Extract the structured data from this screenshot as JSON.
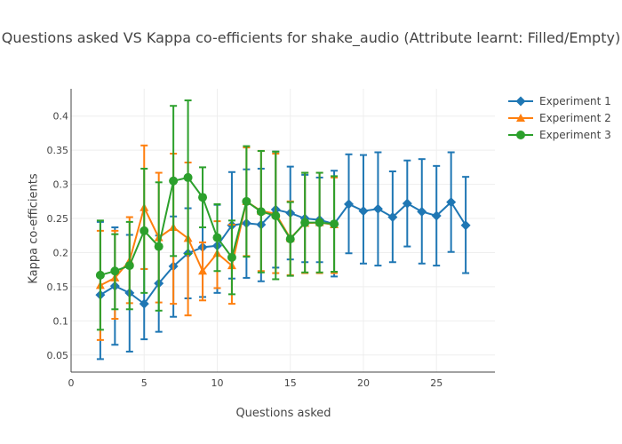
{
  "chart_data": {
    "type": "line",
    "title": "Questions asked VS Kappa co-efficients for shake_audio (Attribute learnt: Filled/Empty)",
    "xlabel": "Questions asked",
    "ylabel": "Kappa co-efficients",
    "xlim": [
      0,
      29
    ],
    "ylim": [
      0.025,
      0.44
    ],
    "x_ticks": [
      0,
      5,
      10,
      15,
      20,
      25
    ],
    "y_ticks": [
      0.05,
      0.1,
      0.15,
      0.2,
      0.25,
      0.3,
      0.35,
      0.4
    ],
    "grid": true,
    "legend_position": "top-right",
    "series": [
      {
        "name": "Experiment 1",
        "color": "#1f77b4",
        "marker": "diamond",
        "x": [
          2,
          3,
          4,
          5,
          6,
          7,
          8,
          9,
          10,
          11,
          12,
          13,
          14,
          15,
          16,
          17,
          18,
          19,
          20,
          21,
          22,
          23,
          24,
          25,
          26,
          27
        ],
        "y": [
          0.138,
          0.151,
          0.141,
          0.125,
          0.155,
          0.18,
          0.199,
          0.208,
          0.21,
          0.24,
          0.243,
          0.241,
          0.263,
          0.258,
          0.25,
          0.248,
          0.242,
          0.271,
          0.261,
          0.264,
          0.252,
          0.272,
          0.26,
          0.254,
          0.274,
          0.24
        ],
        "err_upper": [
          0.245,
          0.237,
          0.226,
          0.176,
          0.225,
          0.253,
          0.265,
          0.283,
          0.27,
          0.318,
          0.322,
          0.323,
          0.348,
          0.326,
          0.314,
          0.31,
          0.32,
          0.344,
          0.343,
          0.347,
          0.319,
          0.335,
          0.337,
          0.327,
          0.347,
          0.311
        ],
        "err_lower": [
          0.044,
          0.065,
          0.055,
          0.073,
          0.084,
          0.106,
          0.133,
          0.135,
          0.141,
          0.162,
          0.163,
          0.158,
          0.178,
          0.19,
          0.186,
          0.186,
          0.165,
          0.199,
          0.184,
          0.181,
          0.186,
          0.209,
          0.184,
          0.181,
          0.201,
          0.17
        ]
      },
      {
        "name": "Experiment 2",
        "color": "#ff7f0e",
        "marker": "triangle-up",
        "x": [
          2,
          3,
          4,
          5,
          6,
          7,
          8,
          9,
          10,
          11,
          12,
          13,
          14,
          15,
          16,
          17,
          18
        ],
        "y": [
          0.152,
          0.163,
          0.188,
          0.266,
          0.222,
          0.237,
          0.221,
          0.173,
          0.199,
          0.181,
          0.275,
          0.261,
          0.257,
          0.221,
          0.243,
          0.244,
          0.241
        ],
        "err_upper": [
          0.232,
          0.232,
          0.252,
          0.357,
          0.317,
          0.345,
          0.332,
          0.215,
          0.246,
          0.241,
          0.354,
          0.349,
          0.345,
          0.275,
          0.317,
          0.317,
          0.31
        ],
        "err_lower": [
          0.072,
          0.103,
          0.126,
          0.176,
          0.127,
          0.125,
          0.108,
          0.13,
          0.148,
          0.125,
          0.195,
          0.173,
          0.17,
          0.167,
          0.17,
          0.17,
          0.17
        ]
      },
      {
        "name": "Experiment 3",
        "color": "#2ca02c",
        "marker": "circle",
        "x": [
          2,
          3,
          4,
          5,
          6,
          7,
          8,
          9,
          10,
          11,
          12,
          13,
          14,
          15,
          16,
          17,
          18
        ],
        "y": [
          0.167,
          0.173,
          0.181,
          0.232,
          0.209,
          0.305,
          0.31,
          0.281,
          0.222,
          0.193,
          0.275,
          0.26,
          0.254,
          0.22,
          0.244,
          0.244,
          0.242
        ],
        "err_upper": [
          0.247,
          0.227,
          0.245,
          0.323,
          0.303,
          0.415,
          0.423,
          0.325,
          0.271,
          0.247,
          0.356,
          0.349,
          0.348,
          0.274,
          0.317,
          0.317,
          0.312
        ],
        "err_lower": [
          0.087,
          0.117,
          0.117,
          0.141,
          0.115,
          0.195,
          0.198,
          0.237,
          0.173,
          0.139,
          0.194,
          0.171,
          0.161,
          0.166,
          0.171,
          0.171,
          0.172
        ]
      }
    ]
  }
}
